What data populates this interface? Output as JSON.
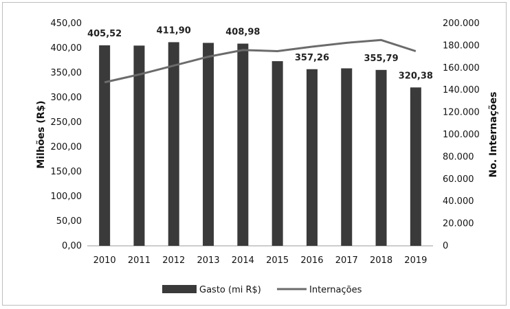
{
  "chart_data": {
    "type": "bar+line",
    "categories": [
      "2010",
      "2011",
      "2012",
      "2013",
      "2014",
      "2015",
      "2016",
      "2017",
      "2018",
      "2019"
    ],
    "series": [
      {
        "name": "Gasto (mi R$)",
        "kind": "bar",
        "axis": "left",
        "color": "#3a3a3a",
        "values": [
          405.52,
          405.0,
          411.9,
          410.5,
          408.98,
          373.5,
          357.26,
          359.0,
          355.79,
          320.38
        ]
      },
      {
        "name": "Internações",
        "kind": "line",
        "axis": "right",
        "color": "#6b6b6b",
        "values": [
          147000,
          154000,
          162000,
          170000,
          176000,
          175000,
          179000,
          182500,
          185000,
          175000
        ]
      }
    ],
    "data_labels": [
      {
        "index": 0,
        "text": "405,52"
      },
      {
        "index": 2,
        "text": "411,90"
      },
      {
        "index": 4,
        "text": "408,98"
      },
      {
        "index": 6,
        "text": "357,26"
      },
      {
        "index": 8,
        "text": "355,79"
      },
      {
        "index": 9,
        "text": "320,38"
      }
    ],
    "ylabel_left": "Milhões (R$)",
    "ylabel_right": "No. Internações",
    "ylim_left": [
      0,
      450
    ],
    "ylim_right": [
      0,
      200000
    ],
    "yticks_left": [
      "0,00",
      "50,00",
      "100,00",
      "150,00",
      "200,00",
      "250,00",
      "300,00",
      "350,00",
      "400,00",
      "450,00"
    ],
    "yticks_right": [
      "0",
      "20.000",
      "40.000",
      "60.000",
      "80.000",
      "100.000",
      "120.000",
      "140.000",
      "160.000",
      "180.000",
      "200.000"
    ],
    "grid": false,
    "legend_position": "bottom"
  }
}
